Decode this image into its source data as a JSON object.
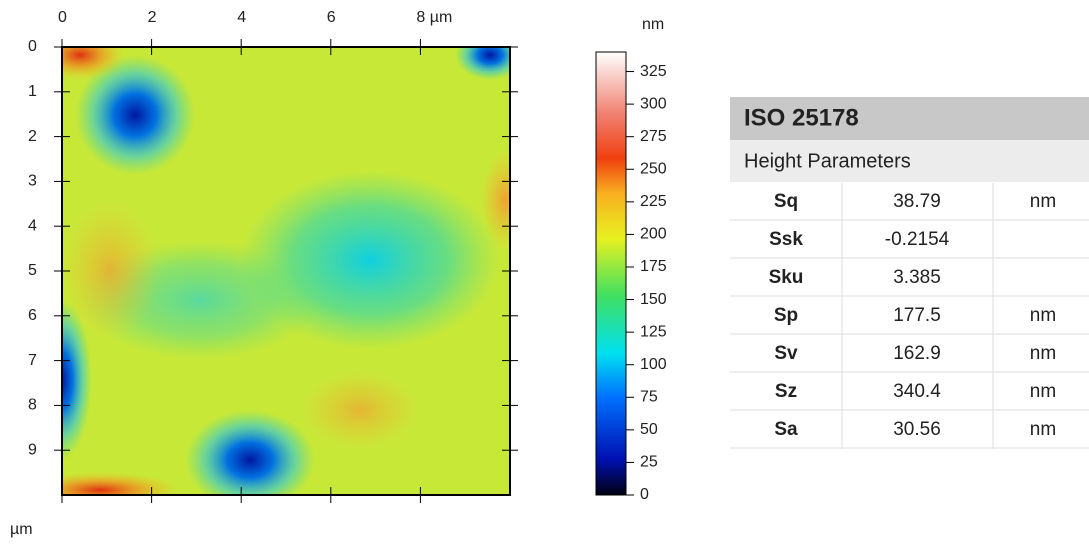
{
  "map": {
    "x_ticks": [
      0,
      2,
      4,
      6,
      {
        "value": 8,
        "label": "8 µm"
      }
    ],
    "y_ticks": [
      0,
      1,
      2,
      3,
      4,
      5,
      6,
      7,
      8,
      9
    ],
    "y_unit": "µm",
    "xlim": [
      0,
      10
    ],
    "ylim": [
      0,
      10
    ]
  },
  "colorbar": {
    "unit": "nm",
    "range": [
      0,
      340
    ],
    "ticks": [
      0,
      25,
      50,
      75,
      100,
      125,
      150,
      175,
      200,
      225,
      250,
      275,
      300,
      325
    ]
  },
  "table": {
    "title": "ISO 25178",
    "subtitle": "Height Parameters",
    "rows": [
      {
        "name": "Sq",
        "value": 38.79,
        "unit": "nm"
      },
      {
        "name": "Ssk",
        "value": -0.2154
      },
      {
        "name": "Sku",
        "value": 3.385
      },
      {
        "name": "Sp",
        "value": 177.5,
        "unit": "nm"
      },
      {
        "name": "Sv",
        "value": 162.9,
        "unit": "nm"
      },
      {
        "name": "Sz",
        "value": 340.4,
        "unit": "nm"
      },
      {
        "name": "Sa",
        "value": 30.56,
        "unit": "nm"
      }
    ]
  }
}
